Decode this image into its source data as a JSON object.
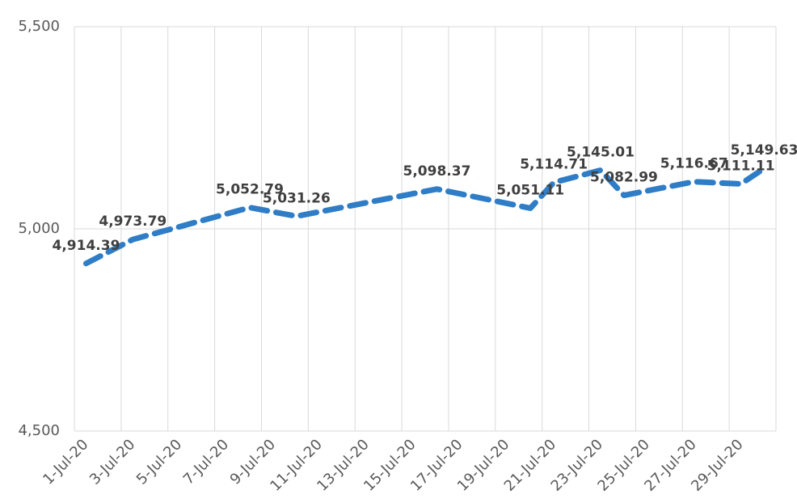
{
  "chart_data": {
    "type": "line",
    "x": [
      "1-Jul-20",
      "3-Jul-20",
      "8-Jul-20",
      "10-Jul-20",
      "16-Jul-20",
      "20-Jul-20",
      "21-Jul-20",
      "23-Jul-20",
      "24-Jul-20",
      "27-Jul-20",
      "29-Jul-20",
      "30-Jul-20"
    ],
    "values": [
      4914.39,
      4973.79,
      5052.79,
      5031.26,
      5098.37,
      5051.11,
      5114.71,
      5145.01,
      5082.99,
      5116.67,
      5111.11,
      5149.63
    ],
    "value_labels": [
      "4,914.39",
      "4,973.79",
      "5,052.79",
      "5,031.26",
      "5,098.37",
      "5,051.11",
      "5,114.71",
      "5,145.01",
      "5,082.99",
      "5,116.67",
      "5,111.11",
      "5,149.63"
    ],
    "color": "#2e7dc6",
    "xlim": [
      "1-Jul-20",
      "30-Jul-20"
    ],
    "xticks": [
      "1-Jul-20",
      "3-Jul-20",
      "5-Jul-20",
      "7-Jul-20",
      "9-Jul-20",
      "11-Jul-20",
      "13-Jul-20",
      "15-Jul-20",
      "17-Jul-20",
      "19-Jul-20",
      "21-Jul-20",
      "23-Jul-20",
      "25-Jul-20",
      "27-Jul-20",
      "29-Jul-20"
    ],
    "ylim": [
      4500,
      5500
    ],
    "yticks": [
      {
        "value": 4500,
        "label": "4,500"
      },
      {
        "value": 5000,
        "label": "5,000"
      },
      {
        "value": 5500,
        "label": "5,500"
      }
    ],
    "grid": true
  }
}
